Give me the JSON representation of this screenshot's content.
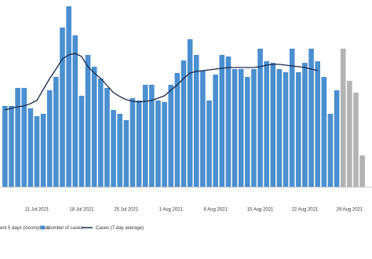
{
  "chart_data": {
    "type": "bar",
    "categories": [
      null,
      null,
      null,
      null,
      null,
      "11 Jul 2021",
      null,
      null,
      null,
      null,
      null,
      null,
      "18 Jul 2021",
      null,
      null,
      null,
      null,
      null,
      null,
      "25 Jul 2021",
      null,
      null,
      null,
      null,
      null,
      null,
      "1 Aug 2021",
      null,
      null,
      null,
      null,
      null,
      null,
      "8 Aug 2021",
      null,
      null,
      null,
      null,
      null,
      null,
      "15 Aug 2021",
      null,
      null,
      null,
      null,
      null,
      null,
      "22 Aug 2021",
      null,
      null,
      null,
      null,
      null,
      null,
      "29 Aug 2021",
      null,
      null
    ],
    "series": [
      {
        "name": "Number of cases",
        "color": "#4a8fd0",
        "values": [
          103,
          103,
          126,
          126,
          100,
          90,
          93,
          123,
          140,
          203,
          230,
          193,
          116,
          168,
          153,
          138,
          126,
          98,
          93,
          85,
          113,
          110,
          130,
          130,
          110,
          108,
          130,
          145,
          161,
          188,
          168,
          148,
          110,
          143,
          168,
          166,
          150,
          150,
          140,
          150,
          176,
          160,
          158,
          150,
          146,
          176,
          146,
          158,
          176,
          160,
          140,
          93,
          123,
          null,
          null,
          null,
          null
        ]
      },
      {
        "name": "ent 5 days (incomplete)",
        "color": "#b3b3b3",
        "values": [
          null,
          null,
          null,
          null,
          null,
          null,
          null,
          null,
          null,
          null,
          null,
          null,
          null,
          null,
          null,
          null,
          null,
          null,
          null,
          null,
          null,
          null,
          null,
          null,
          null,
          null,
          null,
          null,
          null,
          null,
          null,
          null,
          null,
          null,
          null,
          null,
          null,
          null,
          null,
          null,
          null,
          null,
          null,
          null,
          null,
          null,
          null,
          null,
          null,
          null,
          null,
          null,
          null,
          176,
          135,
          120,
          40
        ]
      },
      {
        "name": "Cases (7-day average)",
        "color": "#1b2a4a",
        "kind": "line",
        "values": [
          98,
          100,
          102,
          103,
          106,
          110,
          124,
          138,
          150,
          163,
          168,
          170,
          166,
          153,
          145,
          138,
          129,
          120,
          115,
          111,
          109,
          108,
          109,
          110,
          113,
          116,
          123,
          130,
          138,
          145,
          147,
          148,
          149,
          150,
          151,
          152,
          152,
          152,
          152,
          152,
          153,
          155,
          156,
          156,
          155,
          154,
          153,
          152,
          150,
          148,
          null,
          null,
          null,
          null,
          null,
          null,
          null
        ]
      }
    ],
    "ylim": [
      0,
      238
    ]
  }
}
